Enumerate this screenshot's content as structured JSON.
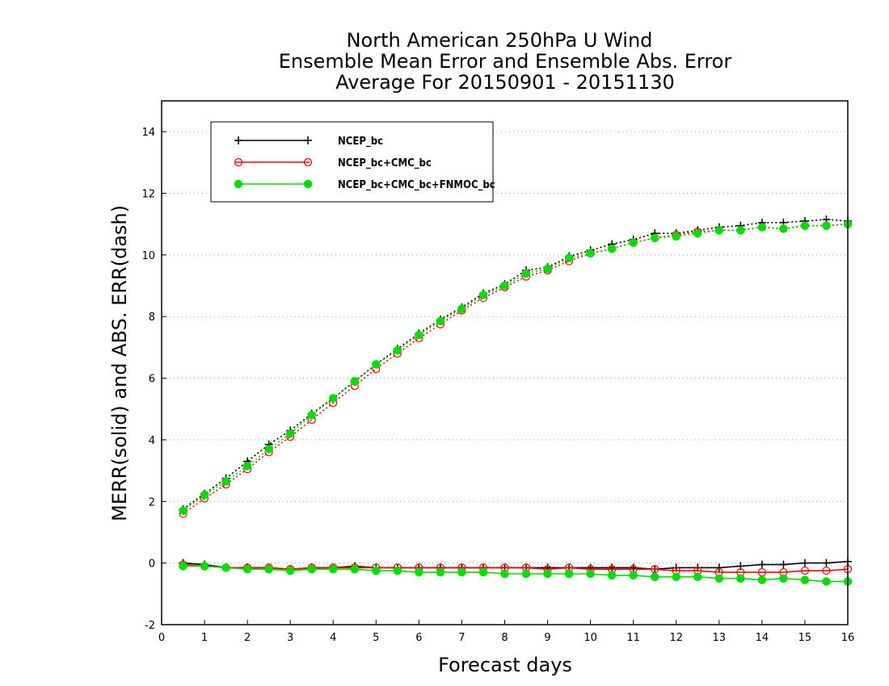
{
  "chart_data": {
    "type": "line",
    "title_lines": [
      "North American 250hPa U Wind",
      "Ensemble Mean Error and Ensemble Abs. Error",
      "Average For 20150901 - 20151130"
    ],
    "xlabel": "Forecast days",
    "ylabel": "MERR(solid) and ABS. ERR(dash)",
    "xlim": [
      0,
      16
    ],
    "ylim": [
      -2,
      15
    ],
    "xticks": [
      "0",
      "1",
      "2",
      "3",
      "4",
      "5",
      "6",
      "7",
      "8",
      "9",
      "10",
      "11",
      "12",
      "13",
      "14",
      "15",
      "16"
    ],
    "yticks": [
      "-2",
      "0",
      "2",
      "4",
      "6",
      "8",
      "10",
      "12",
      "14"
    ],
    "grid": "horizontal dotted",
    "legend_position": "top-left",
    "x": [
      0.5,
      1.0,
      1.5,
      2.0,
      2.5,
      3.0,
      3.5,
      4.0,
      4.5,
      5.0,
      5.5,
      6.0,
      6.5,
      7.0,
      7.5,
      8.0,
      8.5,
      9.0,
      9.5,
      10.0,
      10.5,
      11.0,
      11.5,
      12.0,
      12.5,
      13.0,
      13.5,
      14.0,
      14.5,
      15.0,
      15.5,
      16.0
    ],
    "series": [
      {
        "name": "NCEP_bc",
        "color": "#000000",
        "marker": "plus",
        "merr": [
          0.0,
          -0.05,
          -0.15,
          -0.15,
          -0.15,
          -0.2,
          -0.15,
          -0.15,
          -0.1,
          -0.15,
          -0.15,
          -0.15,
          -0.15,
          -0.15,
          -0.15,
          -0.15,
          -0.15,
          -0.15,
          -0.15,
          -0.15,
          -0.15,
          -0.15,
          -0.2,
          -0.15,
          -0.15,
          -0.15,
          -0.1,
          -0.05,
          -0.05,
          0.0,
          0.0,
          0.05
        ],
        "abs_err": [
          1.75,
          2.25,
          2.75,
          3.3,
          3.85,
          4.3,
          4.85,
          5.35,
          5.9,
          6.45,
          6.95,
          7.45,
          7.9,
          8.3,
          8.75,
          9.05,
          9.5,
          9.6,
          9.95,
          10.15,
          10.35,
          10.5,
          10.7,
          10.7,
          10.8,
          10.9,
          10.95,
          11.05,
          11.05,
          11.1,
          11.15,
          11.1
        ]
      },
      {
        "name": "NCEP_bc+CMC_bc",
        "color": "#ff0000",
        "marker": "open-circle",
        "merr": [
          -0.05,
          -0.1,
          -0.15,
          -0.15,
          -0.15,
          -0.2,
          -0.15,
          -0.15,
          -0.15,
          -0.15,
          -0.15,
          -0.15,
          -0.15,
          -0.15,
          -0.15,
          -0.15,
          -0.15,
          -0.2,
          -0.15,
          -0.2,
          -0.2,
          -0.2,
          -0.2,
          -0.25,
          -0.25,
          -0.3,
          -0.3,
          -0.3,
          -0.3,
          -0.25,
          -0.25,
          -0.2
        ],
        "abs_err": [
          1.6,
          2.1,
          2.55,
          3.05,
          3.6,
          4.1,
          4.65,
          5.2,
          5.75,
          6.3,
          6.8,
          7.3,
          7.75,
          8.2,
          8.6,
          8.95,
          9.3,
          9.5,
          9.8,
          10.05,
          10.2,
          10.4,
          10.55,
          10.65,
          10.75,
          10.8,
          10.8,
          10.9,
          10.85,
          10.95,
          10.95,
          11.0
        ]
      },
      {
        "name": "NCEP_bc+CMC_bc+FNMOC_bc",
        "color": "#00dd00",
        "marker": "filled-circle",
        "merr": [
          -0.1,
          -0.1,
          -0.15,
          -0.2,
          -0.2,
          -0.25,
          -0.2,
          -0.2,
          -0.2,
          -0.25,
          -0.25,
          -0.3,
          -0.3,
          -0.3,
          -0.3,
          -0.35,
          -0.35,
          -0.35,
          -0.35,
          -0.35,
          -0.4,
          -0.4,
          -0.45,
          -0.45,
          -0.45,
          -0.5,
          -0.5,
          -0.55,
          -0.5,
          -0.55,
          -0.6,
          -0.6
        ],
        "abs_err": [
          1.7,
          2.2,
          2.65,
          3.15,
          3.7,
          4.2,
          4.8,
          5.35,
          5.9,
          6.45,
          6.9,
          7.4,
          7.85,
          8.25,
          8.7,
          9.0,
          9.4,
          9.55,
          9.9,
          10.05,
          10.2,
          10.4,
          10.55,
          10.6,
          10.7,
          10.8,
          10.8,
          10.9,
          10.85,
          10.95,
          10.95,
          11.0
        ]
      }
    ]
  }
}
